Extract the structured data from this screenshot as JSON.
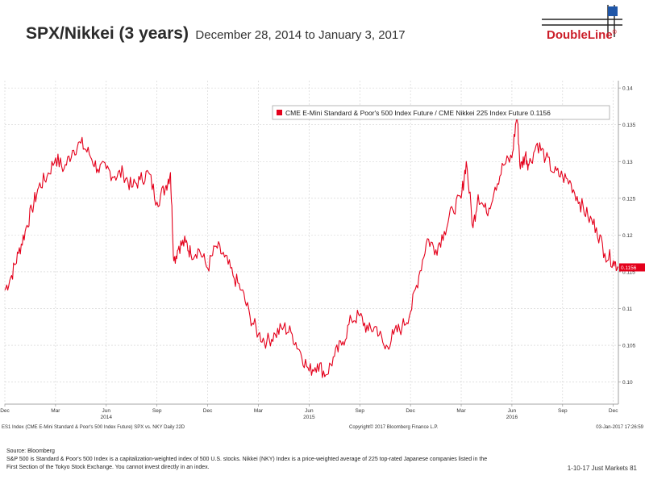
{
  "header": {
    "title": "SPX/Nikkei (3 years)",
    "subtitle": "December 28, 2014 to January 3, 2017",
    "logo_text": "DoubleLine",
    "logo_mark": "®"
  },
  "colors": {
    "series": "#e4001b",
    "grid": "#cfcfcf",
    "brand": "#cc1f2a",
    "logo_box": "#1f56a8"
  },
  "chart_data": {
    "type": "line",
    "legend": {
      "text": "CME E-Mini Standard & Poor's 500 Index Future / CME Nikkei 225 Index Future 0.1156",
      "position": "top-right"
    },
    "ylim": [
      0.097,
      0.141
    ],
    "yticks": [
      0.1,
      0.105,
      0.11,
      0.115,
      0.12,
      0.125,
      0.13,
      0.135,
      0.14
    ],
    "ytick_labels": [
      "0.10",
      "0.105",
      "0.11",
      "0.115",
      "0.12",
      "0.125",
      "0.13",
      "0.135",
      "0.14"
    ],
    "xlim": [
      0,
      36.3
    ],
    "xticks": [
      {
        "pos": 0,
        "label": "Dec"
      },
      {
        "pos": 3,
        "label": "Mar"
      },
      {
        "pos": 6,
        "label": "Jun"
      },
      {
        "pos": 9,
        "label": "Sep"
      },
      {
        "pos": 12,
        "label": "Dec"
      },
      {
        "pos": 15,
        "label": "Mar"
      },
      {
        "pos": 18,
        "label": "Jun"
      },
      {
        "pos": 21,
        "label": "Sep"
      },
      {
        "pos": 24,
        "label": "Dec"
      },
      {
        "pos": 27,
        "label": "Mar"
      },
      {
        "pos": 30,
        "label": "Jun"
      },
      {
        "pos": 33,
        "label": "Sep"
      },
      {
        "pos": 36,
        "label": "Dec"
      }
    ],
    "year_labels": [
      {
        "pos": 6,
        "label": "2014"
      },
      {
        "pos": 18,
        "label": "2015"
      },
      {
        "pos": 30,
        "label": "2016"
      }
    ],
    "last_value": 0.1156,
    "last_value_label": "0.1156",
    "series": [
      {
        "x": [
          0,
          0.4,
          0.8,
          1.2,
          1.6,
          2.0,
          2.5,
          3.0,
          3.5,
          4.0,
          4.5,
          5.0,
          5.5,
          6.0,
          6.5,
          7.0,
          7.5,
          8.0,
          8.5,
          9.0,
          9.5,
          9.8,
          10.0,
          10.3,
          10.7,
          11.0,
          11.5,
          12.0,
          12.5,
          13.0,
          13.5,
          14.0,
          14.5,
          15.0,
          15.5,
          16.0,
          16.5,
          17.0,
          17.5,
          18.0,
          18.5,
          19.0,
          19.5,
          20.0,
          20.5,
          21.0,
          21.5,
          22.0,
          22.5,
          23.0,
          23.5,
          24.0,
          24.5,
          25.0,
          25.5,
          26.0,
          26.5,
          27.0,
          27.3,
          27.7,
          28.0,
          28.5,
          29.0,
          29.5,
          30.0,
          30.3,
          30.5,
          30.8,
          31.0,
          31.5,
          32.0,
          32.5,
          33.0,
          33.5,
          34.0,
          34.5,
          35.0,
          35.5,
          36.0,
          36.3
        ],
        "y": [
          0.1125,
          0.1145,
          0.1175,
          0.1205,
          0.1235,
          0.1265,
          0.128,
          0.1305,
          0.129,
          0.1315,
          0.1325,
          0.131,
          0.129,
          0.129,
          0.128,
          0.1285,
          0.1265,
          0.1275,
          0.1285,
          0.1245,
          0.1265,
          0.1285,
          0.1165,
          0.1185,
          0.119,
          0.1175,
          0.118,
          0.1155,
          0.1185,
          0.117,
          0.1145,
          0.1125,
          0.109,
          0.1065,
          0.1055,
          0.1065,
          0.1075,
          0.1065,
          0.104,
          0.1015,
          0.1025,
          0.101,
          0.1035,
          0.1055,
          0.1085,
          0.109,
          0.107,
          0.1075,
          0.1045,
          0.1065,
          0.1075,
          0.1095,
          0.1145,
          0.1195,
          0.118,
          0.1205,
          0.1235,
          0.125,
          0.13,
          0.121,
          0.1255,
          0.123,
          0.1265,
          0.1295,
          0.1305,
          0.1365,
          0.129,
          0.131,
          0.1295,
          0.1325,
          0.1305,
          0.1285,
          0.128,
          0.127,
          0.1245,
          0.1225,
          0.121,
          0.1175,
          0.1165,
          0.1156
        ]
      }
    ],
    "source_line": "ES1 Index (CME E-Mini Standard & Poor's 500 Index Future) SPX vs. NKY Daily 22D",
    "copyright": "Copyright© 2017 Bloomberg Finance L.P.",
    "timestamp": "03-Jan-2017 17:26:59"
  },
  "footer": {
    "source": "Source: Bloomberg",
    "note1": "S&P 500 is Standard & Poor's 500 Index is a capitalization-weighted index of 500 U.S. stocks. Nikkei (NKY) Index is a price-weighted average of 225 top-rated Japanese companies listed in the",
    "note2": "First Section of the Tokyo Stock Exchange. You cannot invest directly in an index.",
    "page": "1-10-17 Just Markets   81"
  }
}
